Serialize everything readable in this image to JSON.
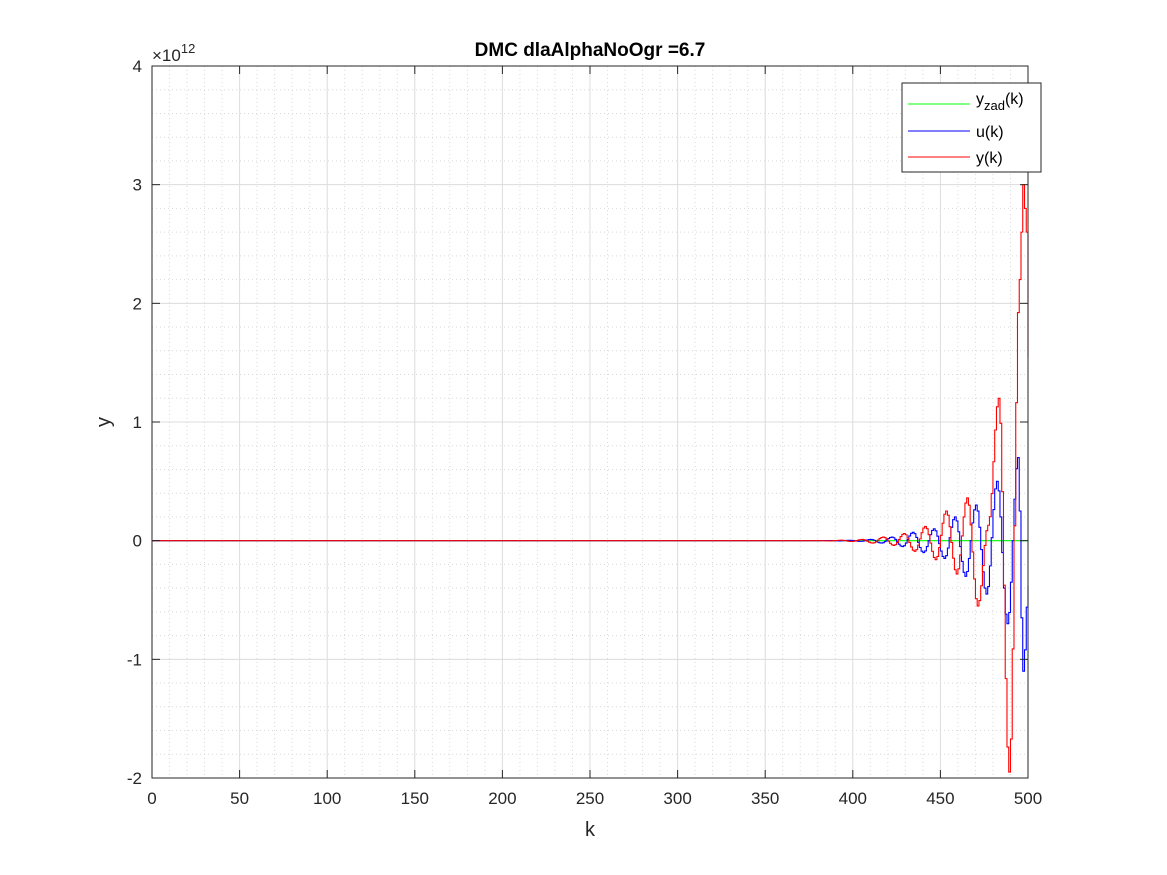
{
  "chart_data": {
    "type": "line",
    "title": "DMC dlaAlphaNoOgr =6.7",
    "xlabel": "k",
    "ylabel": "y",
    "xlim": [
      0,
      500
    ],
    "ylim": [
      -2000000000000.0,
      4000000000000.0
    ],
    "xticks": [
      "0",
      "50",
      "100",
      "150",
      "200",
      "250",
      "300",
      "350",
      "400",
      "450",
      "500"
    ],
    "yticks": [
      "-2",
      "-1",
      "0",
      "1",
      "2",
      "3",
      "4"
    ],
    "y_exponent_base": "×10",
    "y_exponent_power": "12",
    "grid": true,
    "minor_grid": true,
    "legend_position": "top-right",
    "legend": [
      {
        "base": "y",
        "sub": "zad",
        "suffix": "(k)",
        "color": "#00ff00"
      },
      {
        "base": "u(k)",
        "sub": "",
        "suffix": "",
        "color": "#0000ff"
      },
      {
        "base": "y(k)",
        "sub": "",
        "suffix": "",
        "color": "#ff0000"
      }
    ],
    "series": [
      {
        "name": "yzad(k)",
        "color": "#00ff00",
        "x": [
          0,
          500
        ],
        "y": [
          0,
          0
        ]
      },
      {
        "name": "u(k)",
        "color": "#0000ff",
        "x": [
          0,
          380,
          386,
          392,
          398,
          404,
          410,
          416,
          422,
          428,
          434,
          440,
          446,
          452,
          458,
          464,
          470,
          476,
          482,
          488,
          494,
          497,
          500
        ],
        "y": [
          0,
          0,
          1000000000.0,
          -2000000000.0,
          3000000000.0,
          -6000000000.0,
          10000000000.0,
          -20000000000.0,
          30000000000.0,
          -50000000000.0,
          70000000000.0,
          -100000000000.0,
          100000000000.0,
          -150000000000.0,
          200000000000.0,
          -300000000000.0,
          300000000000.0,
          -450000000000.0,
          500000000000.0,
          -700000000000.0,
          700000000000.0,
          -1100000000000.0,
          -380000000000.0
        ]
      },
      {
        "name": "y(k)",
        "color": "#ff0000",
        "x": [
          0,
          380,
          387,
          393,
          399,
          405,
          411,
          417,
          423,
          429,
          435,
          441,
          447,
          453,
          459,
          465,
          471,
          477,
          483,
          489,
          495,
          497,
          499,
          500
        ],
        "y": [
          0,
          0,
          -2000000000.0,
          4000000000.0,
          -7000000000.0,
          10000000000.0,
          -20000000000.0,
          30000000000.0,
          -40000000000.0,
          60000000000.0,
          -90000000000.0,
          120000000000.0,
          -160000000000.0,
          250000000000.0,
          -280000000000.0,
          360000000000.0,
          -550000000000.0,
          130000000000.0,
          1200000000000.0,
          -1950000000000.0,
          2200000000000.0,
          3000000000000.0,
          2600000000000.0,
          1550000000000.0
        ]
      }
    ]
  }
}
